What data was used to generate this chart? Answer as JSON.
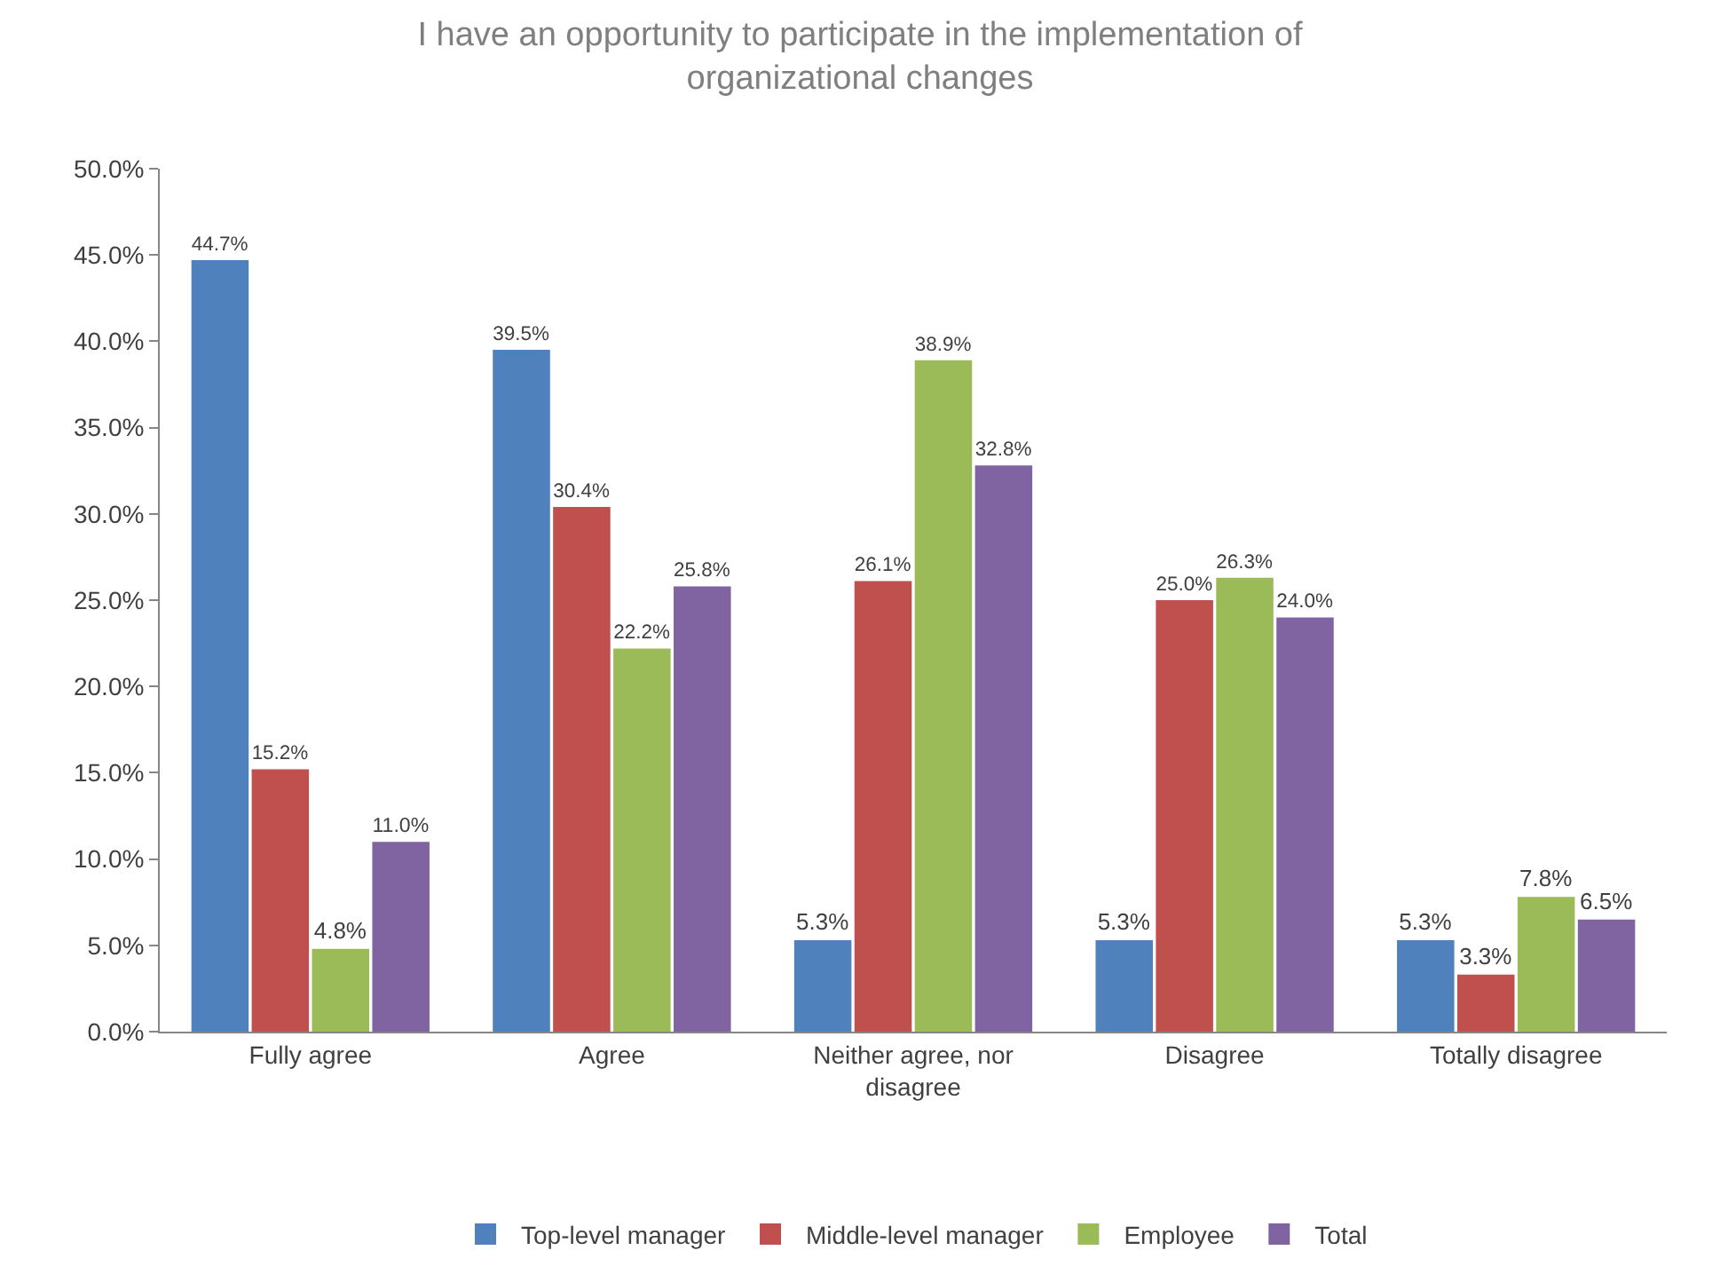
{
  "chart_data": {
    "type": "bar",
    "title": "I have an opportunity to participate in the implementation of organizational changes",
    "categories": [
      "Fully agree",
      "Agree",
      "Neither agree, nor disagree",
      "Disagree",
      "Totally disagree"
    ],
    "series": [
      {
        "name": "Top-level manager",
        "color": "#4f81bd",
        "values": [
          44.7,
          39.5,
          5.3,
          5.3,
          5.3
        ],
        "value_labels": [
          "44.7%",
          "39.5%",
          "5.3%",
          "5.3%",
          "5.3%"
        ]
      },
      {
        "name": "Middle-level manager",
        "color": "#c0504d",
        "values": [
          15.2,
          30.4,
          26.1,
          25.0,
          3.3
        ],
        "value_labels": [
          "15.2%",
          "30.4%",
          "26.1%",
          "25.0%",
          "3.3%"
        ]
      },
      {
        "name": "Employee",
        "color": "#9bbb59",
        "values": [
          4.8,
          22.2,
          38.9,
          26.3,
          7.8
        ],
        "value_labels": [
          "4.8%",
          "22.2%",
          "38.9%",
          "26.3%",
          "7.8%"
        ]
      },
      {
        "name": "Total",
        "color": "#8064a2",
        "values": [
          11.0,
          25.8,
          32.8,
          24.0,
          6.5
        ],
        "value_labels": [
          "11.0%",
          "25.8%",
          "32.8%",
          "24.0%",
          "6.5%"
        ]
      }
    ],
    "ylim": [
      0,
      50
    ],
    "yticks": [
      {
        "value": 0,
        "label": "0.0%"
      },
      {
        "value": 5,
        "label": "5.0%"
      },
      {
        "value": 10,
        "label": "10.0%"
      },
      {
        "value": 15,
        "label": "15.0%"
      },
      {
        "value": 20,
        "label": "20.0%"
      },
      {
        "value": 25,
        "label": "25.0%"
      },
      {
        "value": 30,
        "label": "30.0%"
      },
      {
        "value": 35,
        "label": "35.0%"
      },
      {
        "value": 40,
        "label": "40.0%"
      },
      {
        "value": 45,
        "label": "45.0%"
      },
      {
        "value": 50,
        "label": "50.0%"
      }
    ],
    "grid": false,
    "legend": "bottom"
  }
}
